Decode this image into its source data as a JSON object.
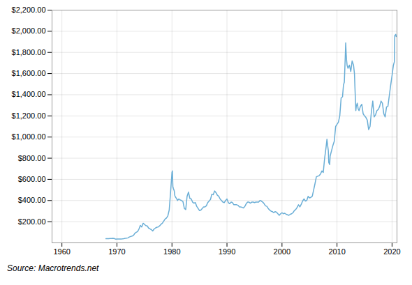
{
  "chart_data": {
    "type": "line",
    "caption": "Source: Macrotrends.net",
    "color": "#6aaed6",
    "grid": true,
    "xlim": [
      1958.2,
      2020.9
    ],
    "xticks": [
      1960,
      1970,
      1980,
      1990,
      2000,
      2010,
      2020
    ],
    "ylim": [
      0,
      2200
    ],
    "yticks": [
      {
        "value": 200,
        "label": "$200.00"
      },
      {
        "value": 400,
        "label": "$400.00"
      },
      {
        "value": 600,
        "label": "$600.00"
      },
      {
        "value": 800,
        "label": "$800.00"
      },
      {
        "value": 1000,
        "label": "$1,000.00"
      },
      {
        "value": 1200,
        "label": "$1,200.00"
      },
      {
        "value": 1400,
        "label": "$1,400.00"
      },
      {
        "value": 1600,
        "label": "$1,600.00"
      },
      {
        "value": 1800,
        "label": "$1,800.00"
      },
      {
        "value": 2000,
        "label": "$2,000.00"
      },
      {
        "value": 2200,
        "label": "$2,200.00"
      }
    ],
    "x": [
      1968.0,
      1968.25,
      1968.5,
      1968.75,
      1969.0,
      1969.25,
      1969.5,
      1969.75,
      1970.0,
      1970.25,
      1970.5,
      1970.75,
      1971.0,
      1971.25,
      1971.5,
      1971.75,
      1972.0,
      1972.25,
      1972.5,
      1972.75,
      1973.0,
      1973.25,
      1973.5,
      1973.75,
      1974.0,
      1974.25,
      1974.5,
      1974.75,
      1975.0,
      1975.25,
      1975.5,
      1975.75,
      1976.0,
      1976.25,
      1976.5,
      1976.75,
      1977.0,
      1977.25,
      1977.5,
      1977.75,
      1978.0,
      1978.25,
      1978.5,
      1978.75,
      1979.0,
      1979.25,
      1979.5,
      1979.75,
      1980.0,
      1980.08,
      1980.17,
      1980.25,
      1980.42,
      1980.5,
      1980.67,
      1980.83,
      1981.0,
      1981.25,
      1981.5,
      1981.75,
      1982.0,
      1982.25,
      1982.5,
      1982.75,
      1983.0,
      1983.25,
      1983.5,
      1983.75,
      1984.0,
      1984.25,
      1984.5,
      1984.75,
      1985.0,
      1985.25,
      1985.5,
      1985.75,
      1986.0,
      1986.25,
      1986.5,
      1986.75,
      1987.0,
      1987.25,
      1987.5,
      1987.75,
      1988.0,
      1988.25,
      1988.5,
      1988.75,
      1989.0,
      1989.25,
      1989.5,
      1989.75,
      1990.0,
      1990.25,
      1990.5,
      1990.75,
      1991.0,
      1991.25,
      1991.5,
      1991.75,
      1992.0,
      1992.25,
      1992.5,
      1992.75,
      1993.0,
      1993.25,
      1993.5,
      1993.75,
      1994.0,
      1994.25,
      1994.5,
      1994.75,
      1995.0,
      1995.25,
      1995.5,
      1995.75,
      1996.0,
      1996.25,
      1996.5,
      1996.75,
      1997.0,
      1997.25,
      1997.5,
      1997.75,
      1998.0,
      1998.25,
      1998.5,
      1998.75,
      1999.0,
      1999.25,
      1999.5,
      1999.75,
      2000.0,
      2000.25,
      2000.5,
      2000.75,
      2001.0,
      2001.25,
      2001.5,
      2001.75,
      2002.0,
      2002.25,
      2002.5,
      2002.75,
      2003.0,
      2003.25,
      2003.5,
      2003.75,
      2004.0,
      2004.25,
      2004.5,
      2004.75,
      2005.0,
      2005.25,
      2005.5,
      2005.75,
      2006.0,
      2006.25,
      2006.5,
      2006.75,
      2007.0,
      2007.25,
      2007.5,
      2007.75,
      2008.0,
      2008.17,
      2008.25,
      2008.42,
      2008.5,
      2008.67,
      2008.75,
      2009.0,
      2009.25,
      2009.5,
      2009.75,
      2010.0,
      2010.25,
      2010.5,
      2010.75,
      2011.0,
      2011.17,
      2011.33,
      2011.5,
      2011.58,
      2011.67,
      2011.75,
      2011.83,
      2012.0,
      2012.25,
      2012.5,
      2012.75,
      2013.0,
      2013.17,
      2013.25,
      2013.42,
      2013.5,
      2013.67,
      2013.75,
      2013.83,
      2014.0,
      2014.25,
      2014.5,
      2014.75,
      2015.0,
      2015.25,
      2015.5,
      2015.75,
      2016.0,
      2016.25,
      2016.5,
      2016.75,
      2017.0,
      2017.25,
      2017.5,
      2017.75,
      2018.0,
      2018.25,
      2018.5,
      2018.75,
      2019.0,
      2019.25,
      2019.5,
      2019.75,
      2020.0,
      2020.25,
      2020.42,
      2020.5,
      2020.67,
      2020.75
    ],
    "values": [
      39,
      40,
      40,
      41,
      41,
      43,
      41,
      35,
      36,
      36,
      37,
      37,
      38,
      40,
      43,
      44,
      47,
      55,
      60,
      64,
      70,
      90,
      100,
      106,
      130,
      165,
      150,
      185,
      175,
      163,
      160,
      140,
      132,
      125,
      112,
      130,
      140,
      148,
      150,
      160,
      175,
      185,
      205,
      225,
      235,
      255,
      310,
      480,
      665,
      680,
      530,
      515,
      490,
      450,
      430,
      420,
      400,
      415,
      405,
      400,
      390,
      325,
      315,
      440,
      480,
      420,
      415,
      385,
      375,
      380,
      345,
      325,
      305,
      310,
      325,
      340,
      340,
      350,
      380,
      395,
      410,
      460,
      455,
      490,
      475,
      450,
      440,
      415,
      400,
      385,
      380,
      400,
      415,
      380,
      370,
      385,
      380,
      360,
      360,
      360,
      355,
      340,
      340,
      335,
      330,
      345,
      370,
      385,
      385,
      375,
      385,
      385,
      380,
      385,
      385,
      385,
      400,
      395,
      385,
      370,
      350,
      345,
      325,
      310,
      300,
      295,
      285,
      295,
      290,
      275,
      260,
      275,
      285,
      275,
      280,
      270,
      265,
      260,
      270,
      275,
      285,
      305,
      315,
      335,
      360,
      340,
      365,
      395,
      415,
      395,
      400,
      440,
      425,
      430,
      440,
      500,
      560,
      625,
      630,
      635,
      650,
      680,
      665,
      800,
      900,
      980,
      940,
      870,
      760,
      740,
      820,
      870,
      920,
      960,
      1100,
      1120,
      1140,
      1200,
      1370,
      1380,
      1490,
      1520,
      1760,
      1890,
      1780,
      1720,
      1680,
      1650,
      1680,
      1620,
      1720,
      1680,
      1600,
      1480,
      1250,
      1290,
      1320,
      1300,
      1270,
      1250,
      1290,
      1310,
      1220,
      1200,
      1185,
      1160,
      1070,
      1100,
      1240,
      1340,
      1190,
      1210,
      1250,
      1260,
      1290,
      1340,
      1320,
      1220,
      1190,
      1285,
      1290,
      1390,
      1490,
      1580,
      1680,
      1710,
      1960,
      1970,
      1950
    ]
  }
}
